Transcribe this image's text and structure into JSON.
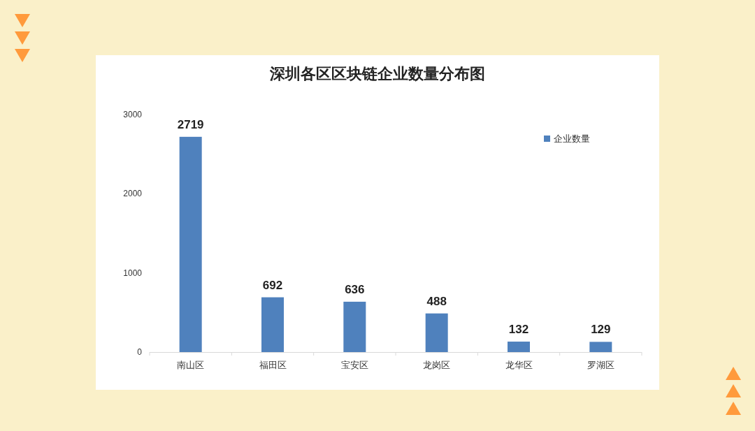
{
  "chart_data": {
    "type": "bar",
    "title": "深圳各区区块链企业数量分布图",
    "categories": [
      "南山区",
      "福田区",
      "宝安区",
      "龙岗区",
      "龙华区",
      "罗湖区"
    ],
    "series": [
      {
        "name": "企业数量",
        "color": "#4f81bd",
        "values": [
          2719,
          692,
          636,
          488,
          132,
          129
        ]
      }
    ],
    "ylim": [
      0,
      3000
    ],
    "yticks": [
      0,
      1000,
      2000,
      3000
    ],
    "data_labels": true,
    "legend": "top right",
    "grid": false
  }
}
